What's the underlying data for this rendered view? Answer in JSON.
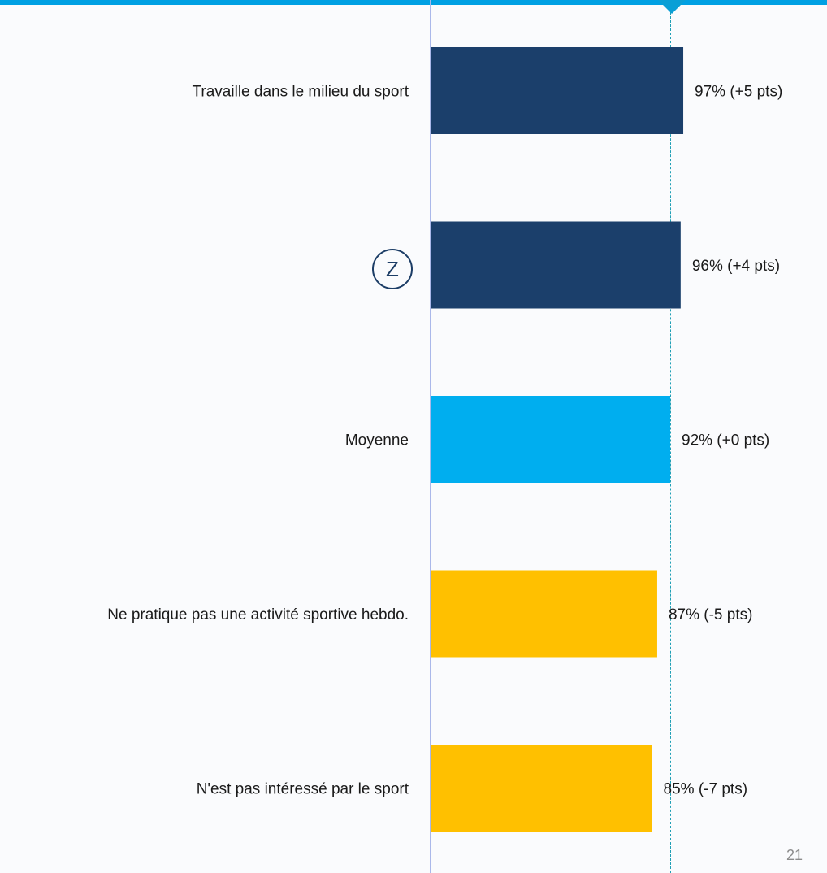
{
  "chart_data": {
    "type": "bar",
    "orientation": "horizontal",
    "categories": [
      "Travaille dans le milieu du sport",
      "",
      "Moyenne",
      "Ne pratique pas une activité sportive hebdo.",
      "N'est pas intéressé par le sport"
    ],
    "values": [
      97,
      96,
      92,
      87,
      85
    ],
    "value_labels": [
      "97% (+5 pts)",
      "96% (+4 pts)",
      "92% (+0 pts)",
      "87% (-5 pts)",
      "85% (-7 pts)"
    ],
    "reference_value": 92,
    "bar_colors": [
      "#1b3f6b",
      "#1b3f6b",
      "#00aeef",
      "#ffc000",
      "#ffc000"
    ],
    "xlim": [
      0,
      100
    ],
    "grid": false,
    "legend": "none"
  },
  "badge": {
    "text": "Z"
  },
  "page": {
    "number": "21"
  },
  "colors": {
    "above": "#1b3f6b",
    "average": "#00aeef",
    "below": "#ffc000",
    "top_bar": "#00a0e3"
  }
}
